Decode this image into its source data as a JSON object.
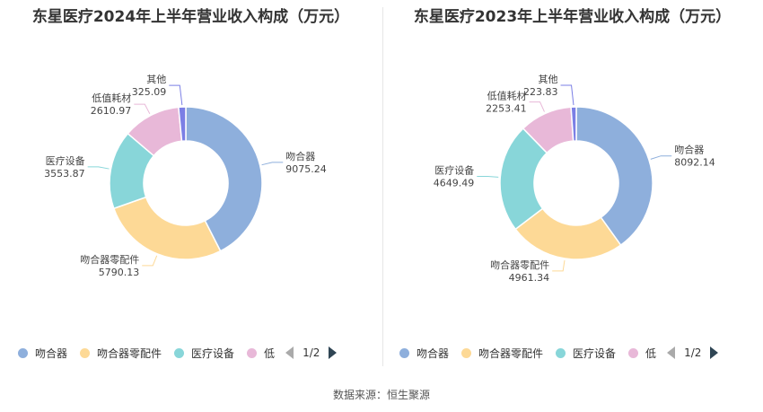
{
  "chart_data": [
    {
      "type": "pie",
      "title": "东星医疗2024年上半年营业收入构成（万元）",
      "categories": [
        "吻合器",
        "吻合器零配件",
        "医疗设备",
        "低值耗材",
        "其他"
      ],
      "values": [
        9075.24,
        5790.13,
        3553.87,
        2610.97,
        325.09
      ],
      "value_labels": [
        "9075.24",
        "5790.13",
        "3553.87",
        "2610.97",
        "325.09"
      ],
      "legend": {
        "placement": "bottom",
        "visible_items": [
          "吻合器",
          "吻合器零配件",
          "医疗设备",
          "低"
        ],
        "page": "1/2"
      }
    },
    {
      "type": "pie",
      "title": "东星医疗2023年上半年营业收入构成（万元）",
      "categories": [
        "吻合器",
        "吻合器零配件",
        "医疗设备",
        "低值耗材",
        "其他"
      ],
      "values": [
        8092.14,
        4961.34,
        4649.49,
        2253.41,
        223.83
      ],
      "value_labels": [
        "8092.14",
        "4961.34",
        "4649.49",
        "2253.41",
        "223.83"
      ],
      "legend": {
        "placement": "bottom",
        "visible_items": [
          "吻合器",
          "吻合器零配件",
          "医疗设备",
          "低"
        ],
        "page": "1/2"
      }
    }
  ],
  "colors": [
    "#8eafdc",
    "#fdd996",
    "#88d6d9",
    "#e8b8d8",
    "#7b7fe5"
  ],
  "source": "数据来源：恒生聚源"
}
